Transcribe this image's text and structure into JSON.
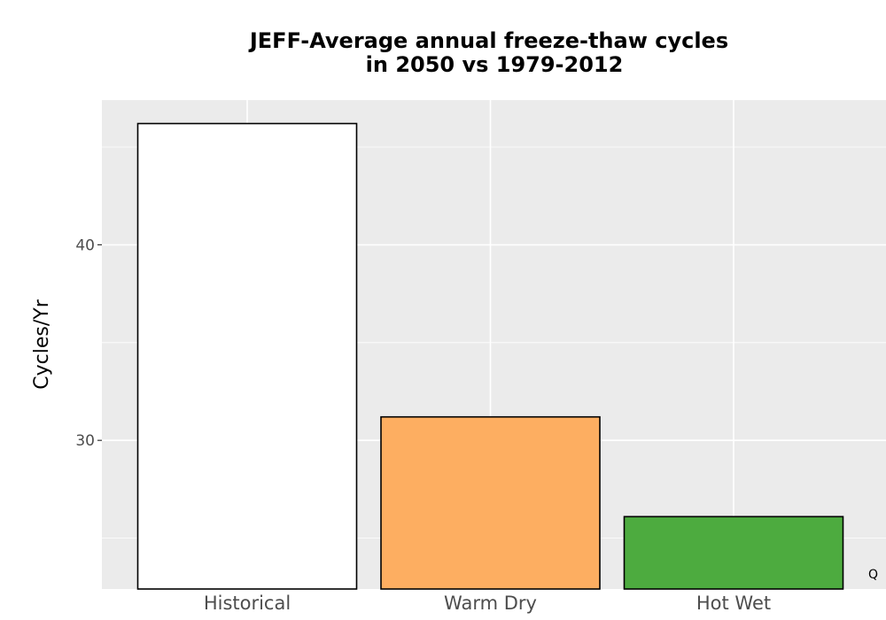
{
  "chart_data": {
    "type": "bar",
    "title": "JEFF-Average annual freeze-thaw cycles",
    "subtitle": "in 2050 vs 1979-2012",
    "xlabel": "",
    "ylabel": "Cycles/Yr",
    "categories": [
      "Historical",
      "Warm Dry",
      "Hot Wet"
    ],
    "values": [
      46.2,
      31.2,
      26.1
    ],
    "colors": [
      "#ffffff",
      "#fdae61",
      "#4dab3f"
    ],
    "outline_color": "#000000",
    "ylim": [
      22.4,
      47.4
    ],
    "yticks_labeled": [
      30,
      40
    ],
    "yticks_minor": [
      25,
      35,
      45
    ],
    "grid": true,
    "panel_background": "#ebebeb",
    "grid_color": "#ffffff",
    "legend": "none",
    "corner_label": "Q"
  }
}
